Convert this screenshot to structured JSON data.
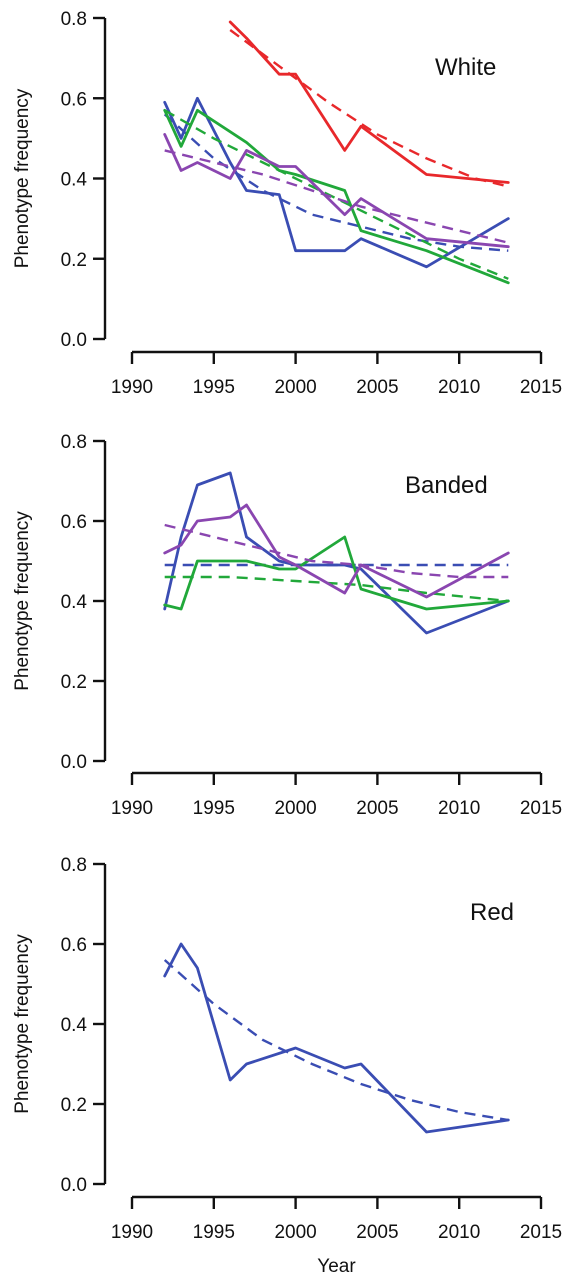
{
  "chart_data": [
    {
      "type": "line",
      "panel_label": "White",
      "xlabel": "",
      "ylabel": "Phenotype frequency",
      "xlim": [
        1990,
        2015
      ],
      "ylim": [
        0,
        0.8
      ],
      "xticks": [
        "1990",
        "1995",
        "2000",
        "2005",
        "2010",
        "2015"
      ],
      "yticks": [
        "0.0",
        "0.2",
        "0.4",
        "0.6",
        "0.8"
      ],
      "grid": false,
      "legend": "none",
      "series": [
        {
          "color": "#e8282b",
          "style": "solid",
          "x": [
            1996,
            1997,
            1999,
            2000,
            2003,
            2004,
            2008,
            2013
          ],
          "values": [
            0.79,
            0.75,
            0.66,
            0.66,
            0.47,
            0.53,
            0.41,
            0.39
          ]
        },
        {
          "color": "#e8282b",
          "style": "dashed",
          "x": [
            1996,
            1999,
            2002,
            2005,
            2008,
            2011,
            2013
          ],
          "values": [
            0.77,
            0.68,
            0.59,
            0.51,
            0.45,
            0.4,
            0.38
          ]
        },
        {
          "color": "#3a4db3",
          "style": "solid",
          "x": [
            1992,
            1993,
            1994,
            1996,
            1997,
            1999,
            2000,
            2003,
            2004,
            2008,
            2013
          ],
          "values": [
            0.59,
            0.5,
            0.6,
            0.44,
            0.37,
            0.36,
            0.22,
            0.22,
            0.25,
            0.18,
            0.3
          ]
        },
        {
          "color": "#3a4db3",
          "style": "dashed",
          "x": [
            1992,
            1995,
            1998,
            2001,
            2004,
            2007,
            2010,
            2013
          ],
          "values": [
            0.56,
            0.45,
            0.37,
            0.31,
            0.28,
            0.25,
            0.23,
            0.22
          ]
        },
        {
          "color": "#21a83a",
          "style": "solid",
          "x": [
            1992,
            1993,
            1994,
            1997,
            1999,
            2000,
            2003,
            2004,
            2008,
            2013
          ],
          "values": [
            0.57,
            0.48,
            0.57,
            0.49,
            0.42,
            0.41,
            0.37,
            0.27,
            0.22,
            0.14
          ]
        },
        {
          "color": "#21a83a",
          "style": "dashed",
          "x": [
            1992,
            1995,
            1998,
            2001,
            2004,
            2007,
            2010,
            2013
          ],
          "values": [
            0.57,
            0.5,
            0.44,
            0.38,
            0.32,
            0.26,
            0.2,
            0.15
          ]
        },
        {
          "color": "#8a46b0",
          "style": "solid",
          "x": [
            1992,
            1993,
            1994,
            1996,
            1997,
            1999,
            2000,
            2003,
            2004,
            2008,
            2013
          ],
          "values": [
            0.51,
            0.42,
            0.44,
            0.4,
            0.47,
            0.43,
            0.43,
            0.31,
            0.35,
            0.25,
            0.23
          ]
        },
        {
          "color": "#8a46b0",
          "style": "dashed",
          "x": [
            1992,
            1995,
            1998,
            2001,
            2004,
            2007,
            2010,
            2013
          ],
          "values": [
            0.47,
            0.44,
            0.41,
            0.37,
            0.33,
            0.3,
            0.27,
            0.24
          ]
        }
      ]
    },
    {
      "type": "line",
      "panel_label": "Banded",
      "xlabel": "",
      "ylabel": "Phenotype frequency",
      "xlim": [
        1990,
        2015
      ],
      "ylim": [
        0,
        0.8
      ],
      "xticks": [
        "1990",
        "1995",
        "2000",
        "2005",
        "2010",
        "2015"
      ],
      "yticks": [
        "0.0",
        "0.2",
        "0.4",
        "0.6",
        "0.8"
      ],
      "grid": false,
      "legend": "none",
      "series": [
        {
          "color": "#3a4db3",
          "style": "solid",
          "x": [
            1992,
            1993,
            1994,
            1996,
            1997,
            1999,
            2000,
            2003,
            2004,
            2008,
            2013
          ],
          "values": [
            0.38,
            0.56,
            0.69,
            0.72,
            0.56,
            0.5,
            0.49,
            0.49,
            0.48,
            0.32,
            0.4
          ]
        },
        {
          "color": "#3a4db3",
          "style": "dashed",
          "x": [
            1992,
            1995,
            2000,
            2005,
            2010,
            2013
          ],
          "values": [
            0.49,
            0.49,
            0.49,
            0.49,
            0.49,
            0.49
          ]
        },
        {
          "color": "#21a83a",
          "style": "solid",
          "x": [
            1992,
            1993,
            1994,
            1997,
            1999,
            2000,
            2003,
            2004,
            2008,
            2013
          ],
          "values": [
            0.39,
            0.38,
            0.5,
            0.5,
            0.48,
            0.48,
            0.56,
            0.43,
            0.38,
            0.4
          ]
        },
        {
          "color": "#21a83a",
          "style": "dashed",
          "x": [
            1992,
            1996,
            2000,
            2004,
            2008,
            2013
          ],
          "values": [
            0.46,
            0.46,
            0.45,
            0.44,
            0.42,
            0.4
          ]
        },
        {
          "color": "#8a46b0",
          "style": "solid",
          "x": [
            1992,
            1993,
            1994,
            1996,
            1997,
            1999,
            2000,
            2003,
            2004,
            2008,
            2013
          ],
          "values": [
            0.52,
            0.54,
            0.6,
            0.61,
            0.64,
            0.51,
            0.49,
            0.42,
            0.49,
            0.41,
            0.52
          ]
        },
        {
          "color": "#8a46b0",
          "style": "dashed",
          "x": [
            1992,
            1995,
            1998,
            2001,
            2004,
            2007,
            2010,
            2013
          ],
          "values": [
            0.59,
            0.56,
            0.53,
            0.5,
            0.49,
            0.47,
            0.46,
            0.46
          ]
        }
      ]
    },
    {
      "type": "line",
      "panel_label": "Red",
      "xlabel": "Year",
      "ylabel": "Phenotype frequency",
      "xlim": [
        1990,
        2015
      ],
      "ylim": [
        0,
        0.8
      ],
      "xticks": [
        "1990",
        "1995",
        "2000",
        "2005",
        "2010",
        "2015"
      ],
      "yticks": [
        "0.0",
        "0.2",
        "0.4",
        "0.6",
        "0.8"
      ],
      "grid": false,
      "legend": "none",
      "series": [
        {
          "color": "#3a4db3",
          "style": "solid",
          "x": [
            1992,
            1993,
            1994,
            1996,
            1997,
            2000,
            2003,
            2004,
            2008,
            2013
          ],
          "values": [
            0.52,
            0.6,
            0.54,
            0.26,
            0.3,
            0.34,
            0.29,
            0.3,
            0.13,
            0.16
          ]
        },
        {
          "color": "#3a4db3",
          "style": "dashed",
          "x": [
            1992,
            1995,
            1998,
            2001,
            2004,
            2007,
            2010,
            2013
          ],
          "values": [
            0.56,
            0.45,
            0.36,
            0.3,
            0.25,
            0.21,
            0.18,
            0.16
          ]
        }
      ]
    }
  ]
}
